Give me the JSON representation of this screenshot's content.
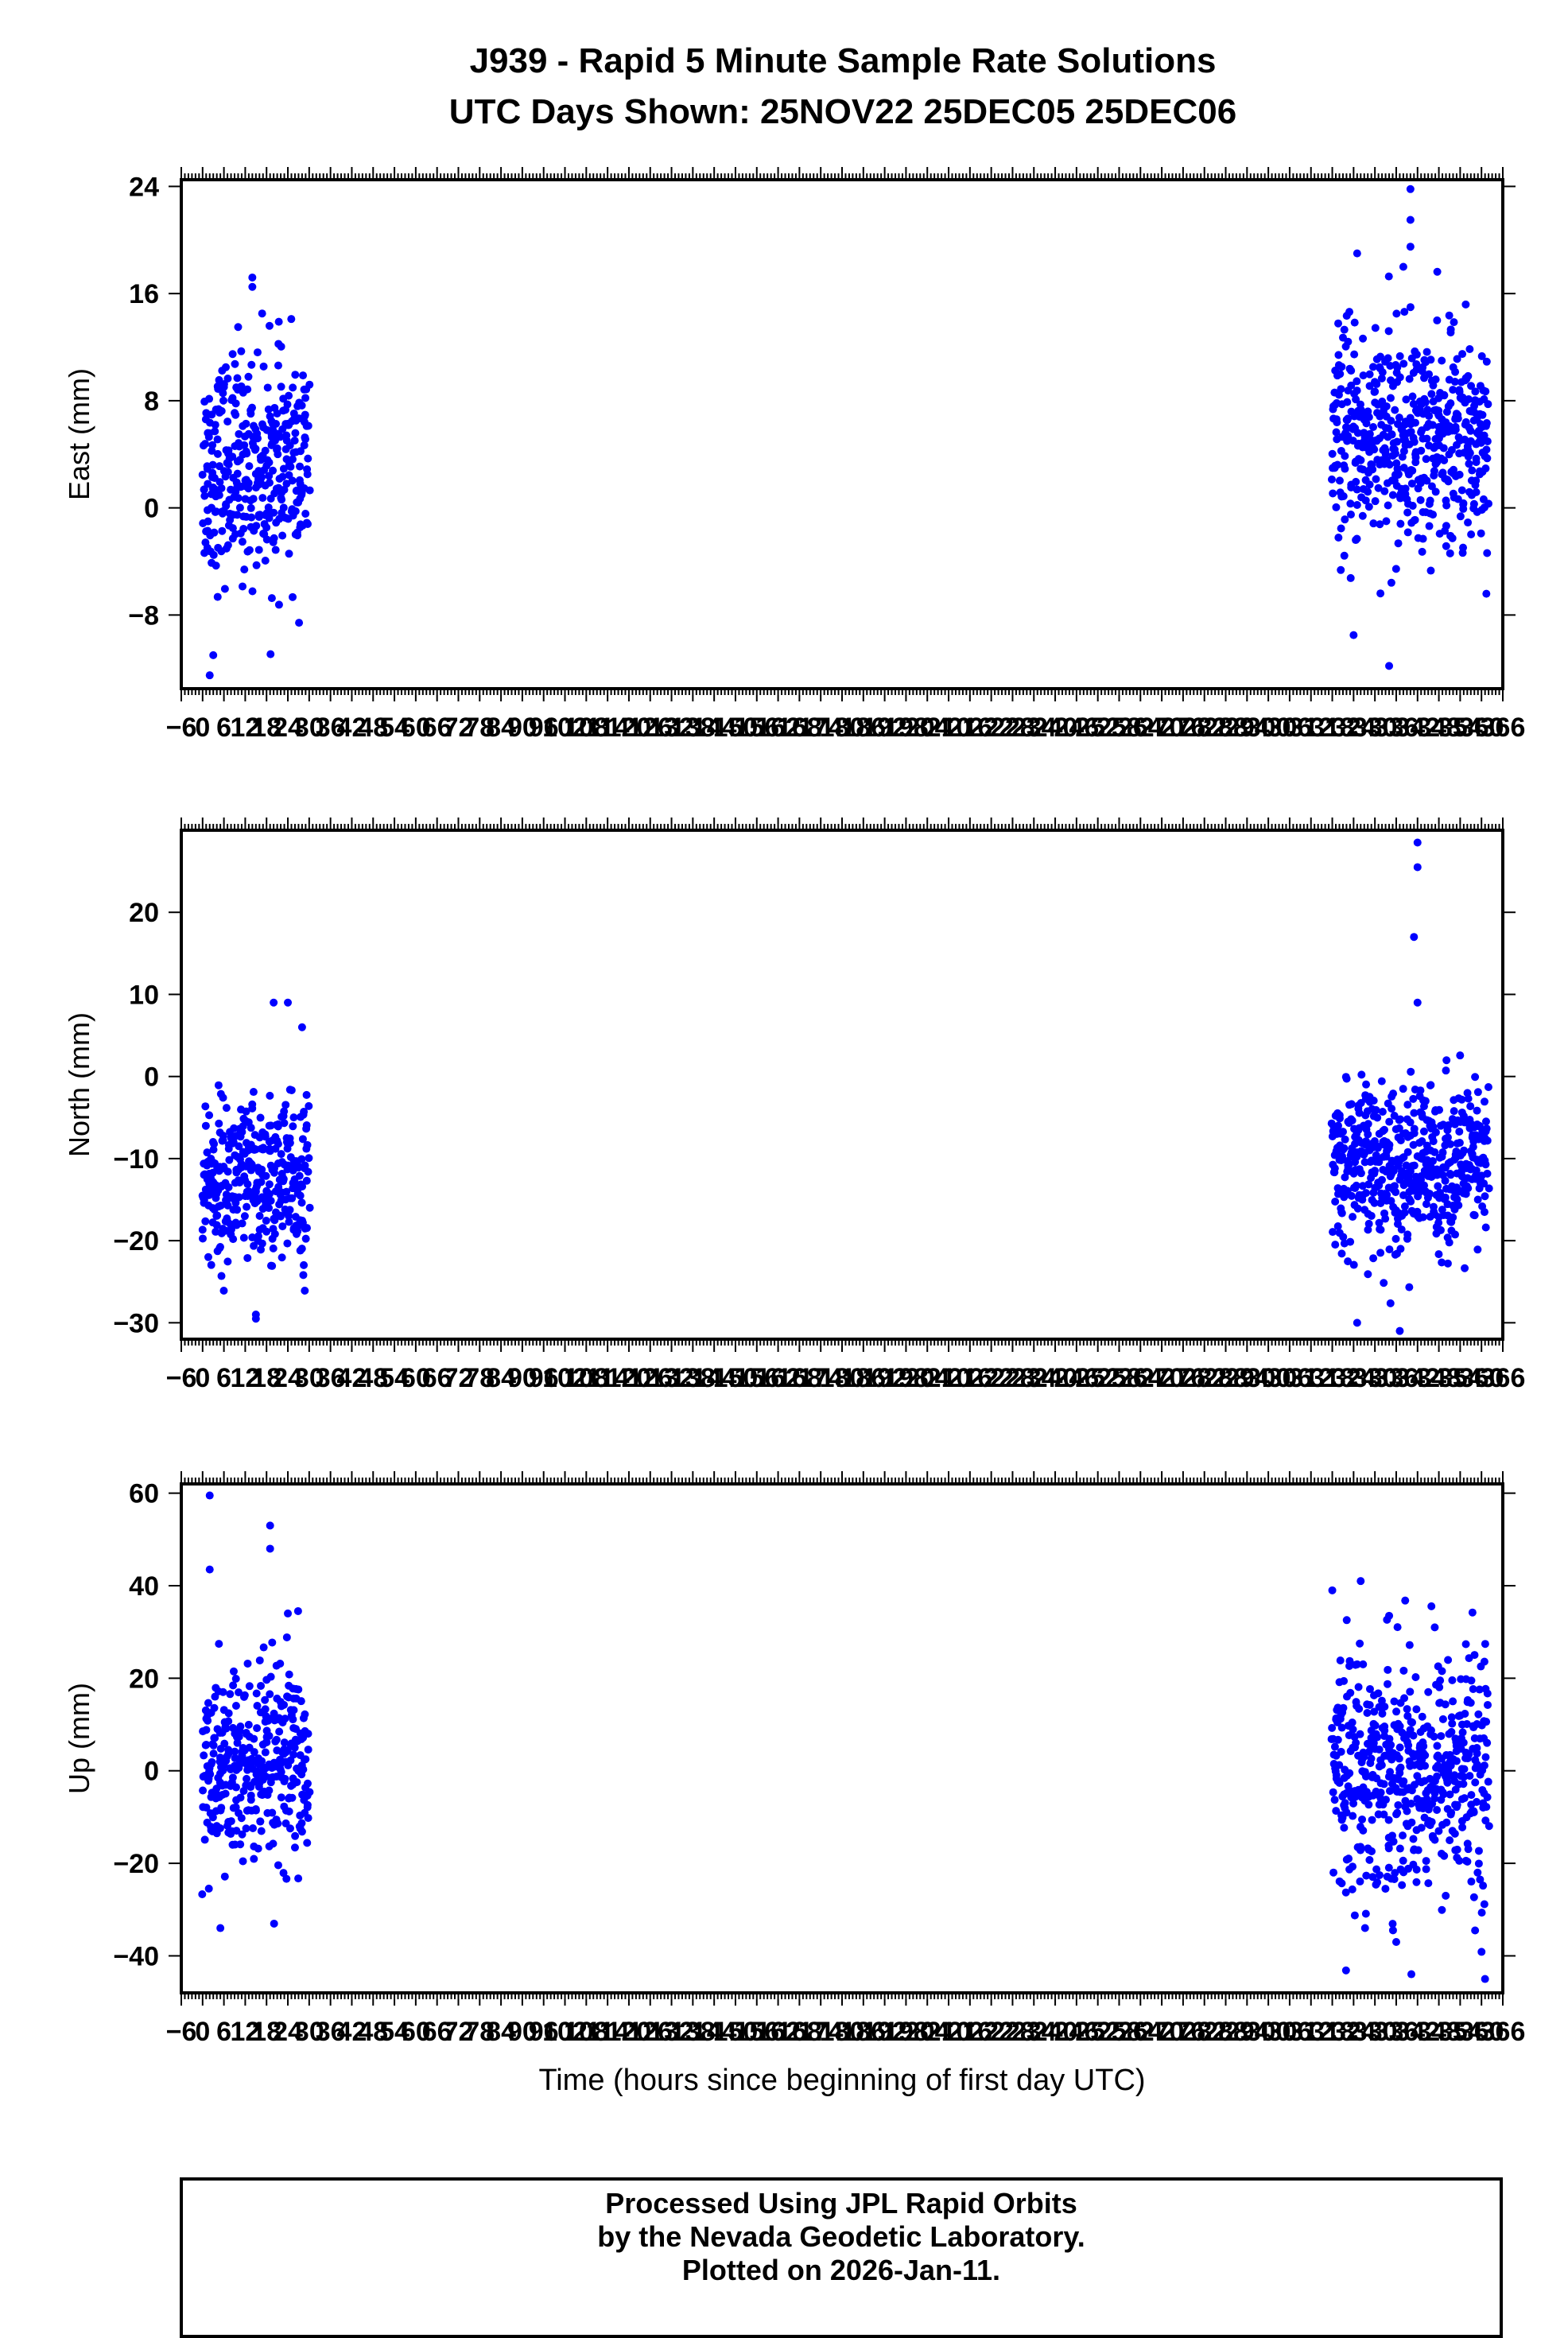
{
  "header": {
    "title_line1": "J939 - Rapid 5 Minute Sample Rate Solutions",
    "title_line2": "UTC Days Shown:  25NOV22 25DEC05 25DEC06"
  },
  "colors": {
    "points": "#0000ff",
    "axes": "#000000"
  },
  "chart_data": [
    {
      "type": "scatter",
      "ylabel": "East (mm)",
      "xlabel": "",
      "ylim": [
        -13.5,
        24.5
      ],
      "yticks": [
        -8,
        0,
        8,
        16,
        24
      ],
      "xlim": [
        -6,
        366
      ],
      "xtick_start": -6,
      "xtick_step": 6,
      "grid": false,
      "clusters": [
        {
          "x": [
            0,
            30
          ],
          "center": 3,
          "spread": 4,
          "outliers": [
            [
              2,
              -12.5
            ],
            [
              3,
              -11
            ],
            [
              14,
              17.2
            ],
            [
              14,
              16.5
            ],
            [
              10,
              13.5
            ]
          ]
        },
        {
          "x": [
            318,
            362
          ],
          "center": 5,
          "spread": 4,
          "outliers": [
            [
              340,
              23.8
            ],
            [
              340,
              21.5
            ],
            [
              325,
              19
            ],
            [
              340,
              19.5
            ],
            [
              334,
              -11.8
            ],
            [
              324,
              -9.5
            ],
            [
              338,
              18
            ]
          ]
        }
      ]
    },
    {
      "type": "scatter",
      "ylabel": "North (mm)",
      "xlabel": "",
      "ylim": [
        -32,
        30
      ],
      "yticks": [
        -30,
        -20,
        -10,
        0,
        10,
        20
      ],
      "xlim": [
        -6,
        366
      ],
      "xtick_start": -6,
      "xtick_step": 6,
      "grid": false,
      "clusters": [
        {
          "x": [
            0,
            30
          ],
          "center": -13,
          "spread": 5,
          "outliers": [
            [
              15,
              -29.5
            ],
            [
              15,
              -29
            ],
            [
              24,
              9
            ],
            [
              20,
              9
            ],
            [
              28,
              6
            ]
          ]
        },
        {
          "x": [
            318,
            362
          ],
          "center": -11,
          "spread": 5,
          "outliers": [
            [
              342,
              28.5
            ],
            [
              342,
              25.5
            ],
            [
              341,
              17
            ],
            [
              342,
              9
            ],
            [
              337,
              -31
            ],
            [
              325,
              -30
            ]
          ]
        }
      ]
    },
    {
      "type": "scatter",
      "ylabel": "Up (mm)",
      "xlabel": "Time (hours since beginning of first day UTC)",
      "ylim": [
        -48,
        62
      ],
      "yticks": [
        -40,
        -20,
        0,
        20,
        40,
        60
      ],
      "xlim": [
        -6,
        366
      ],
      "xtick_start": -6,
      "xtick_step": 6,
      "grid": false,
      "clusters": [
        {
          "x": [
            0,
            30
          ],
          "center": 0,
          "spread": 11,
          "outliers": [
            [
              2,
              59.5
            ],
            [
              2,
              43.5
            ],
            [
              19,
              53
            ],
            [
              19,
              48
            ],
            [
              24,
              34
            ],
            [
              5,
              -34
            ]
          ]
        },
        {
          "x": [
            318,
            362
          ],
          "center": 0,
          "spread": 13,
          "outliers": [
            [
              326,
              41
            ],
            [
              334,
              33.5
            ],
            [
              361,
              -45
            ],
            [
              336,
              -37
            ],
            [
              318,
              39
            ]
          ]
        }
      ]
    }
  ],
  "footer": {
    "line1": "Processed Using JPL Rapid Orbits",
    "line2": "by the Nevada Geodetic Laboratory.",
    "line3": "Plotted on 2026-Jan-11."
  }
}
